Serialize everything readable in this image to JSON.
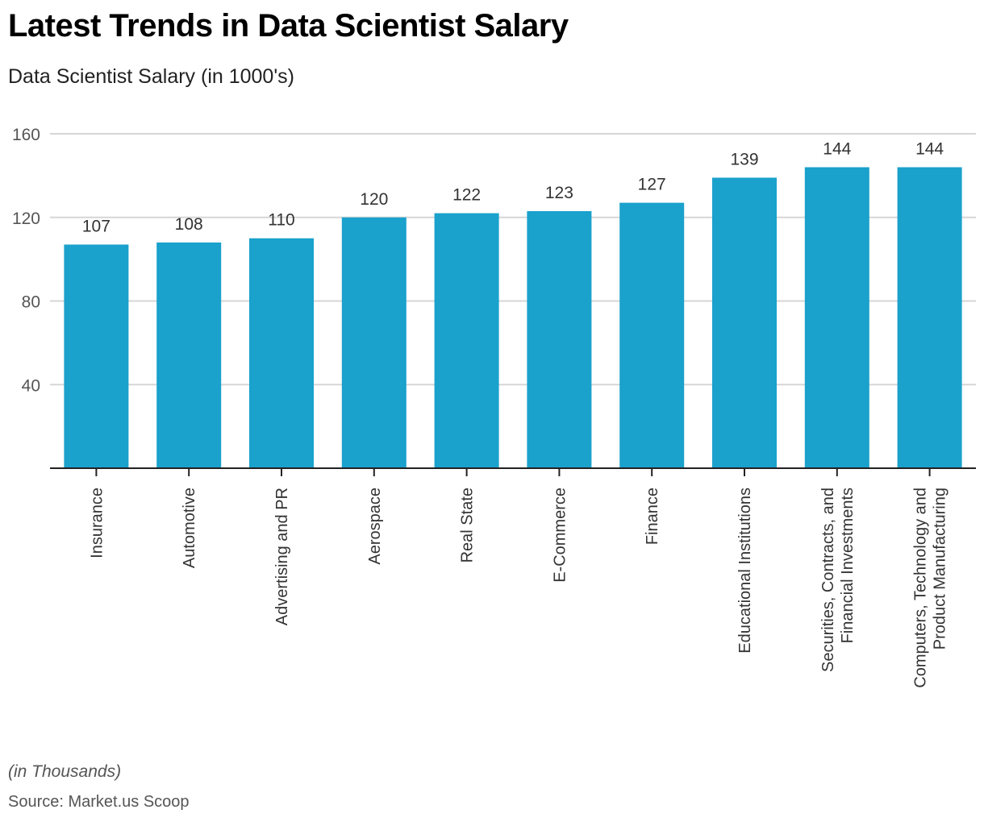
{
  "header": {
    "title": "Latest Trends in Data Scientist Salary",
    "subtitle": "Data Scientist Salary (in 1000's)"
  },
  "footer": {
    "note": "(in Thousands)",
    "source": "Source: Market.us Scoop"
  },
  "colors": {
    "bar": "#1aa1cc",
    "grid": "#d6d6d6",
    "axis": "#222222"
  },
  "chart_data": {
    "type": "bar",
    "title": "Latest Trends in Data Scientist Salary",
    "subtitle": "Data Scientist Salary (in 1000's)",
    "xlabel": "",
    "ylabel": "",
    "ylim": [
      0,
      160
    ],
    "yticks": [
      40,
      80,
      120,
      160
    ],
    "grid": true,
    "legend": "none",
    "categories": [
      [
        "Insurance"
      ],
      [
        "Automotive"
      ],
      [
        "Advertising and PR"
      ],
      [
        "Aerospace"
      ],
      [
        "Real State"
      ],
      [
        "E-Commerce"
      ],
      [
        "Finance"
      ],
      [
        "Educational Institutions"
      ],
      [
        "Securities, Contracts, and",
        "Financial Investments"
      ],
      [
        "Computers, Technology and",
        "Product Manufacturing"
      ]
    ],
    "values": [
      107,
      108,
      110,
      120,
      122,
      123,
      127,
      139,
      144,
      144
    ]
  }
}
